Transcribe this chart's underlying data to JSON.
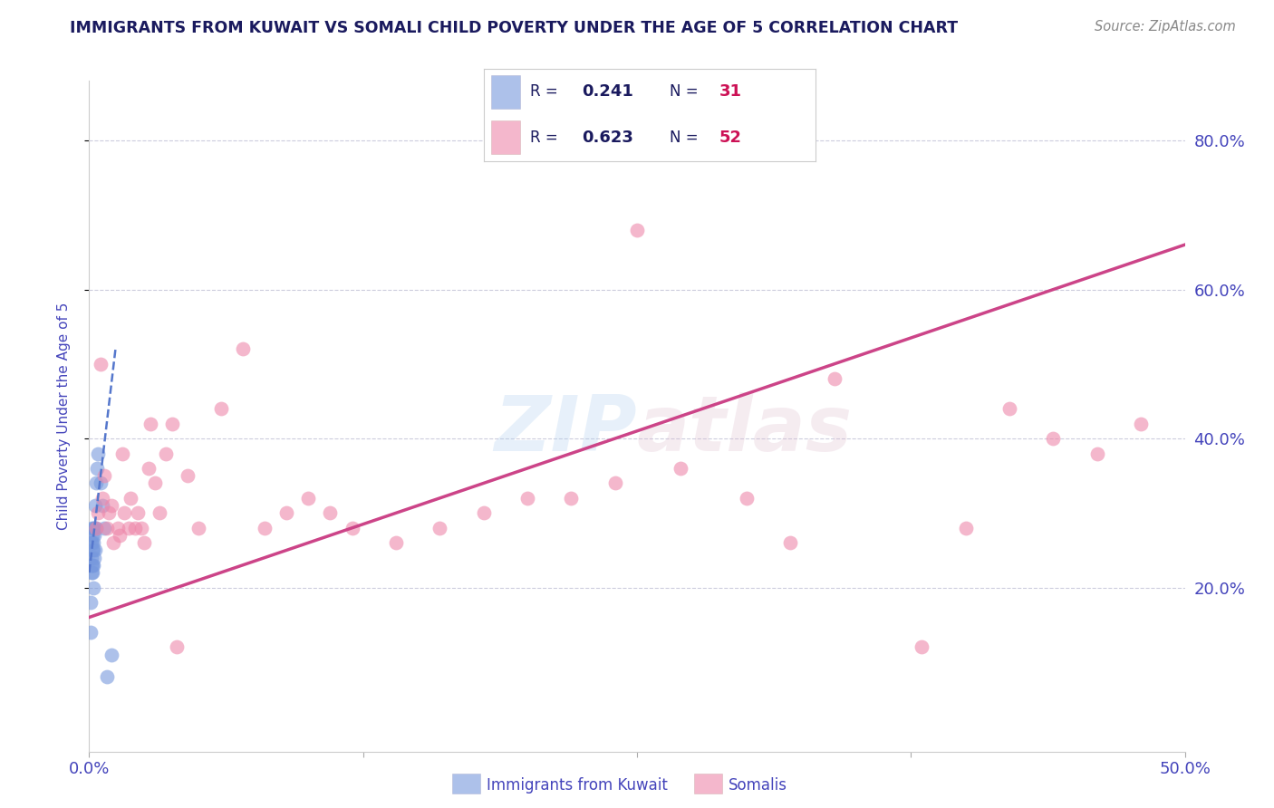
{
  "title": "IMMIGRANTS FROM KUWAIT VS SOMALI CHILD POVERTY UNDER THE AGE OF 5 CORRELATION CHART",
  "source": "Source: ZipAtlas.com",
  "ylabel": "Child Poverty Under the Age of 5",
  "xlabel_blue": "Immigrants from Kuwait",
  "xlabel_pink": "Somalis",
  "xlim": [
    0,
    0.5
  ],
  "ylim": [
    -0.02,
    0.88
  ],
  "R_blue": "0.241",
  "N_blue": "31",
  "R_pink": "0.623",
  "N_pink": "52",
  "blue_scatter_x": [
    0.0008,
    0.0008,
    0.001,
    0.001,
    0.001,
    0.0012,
    0.0012,
    0.0012,
    0.0014,
    0.0014,
    0.0016,
    0.0016,
    0.0018,
    0.002,
    0.002,
    0.002,
    0.002,
    0.0022,
    0.0022,
    0.0024,
    0.0026,
    0.0028,
    0.003,
    0.003,
    0.0035,
    0.004,
    0.005,
    0.006,
    0.007,
    0.008,
    0.01
  ],
  "blue_scatter_y": [
    0.18,
    0.14,
    0.26,
    0.24,
    0.22,
    0.28,
    0.26,
    0.23,
    0.25,
    0.22,
    0.27,
    0.23,
    0.25,
    0.28,
    0.26,
    0.23,
    0.2,
    0.27,
    0.24,
    0.28,
    0.25,
    0.31,
    0.34,
    0.28,
    0.36,
    0.38,
    0.34,
    0.31,
    0.28,
    0.08,
    0.11
  ],
  "pink_scatter_x": [
    0.003,
    0.004,
    0.005,
    0.006,
    0.007,
    0.008,
    0.009,
    0.01,
    0.011,
    0.013,
    0.014,
    0.015,
    0.016,
    0.018,
    0.019,
    0.021,
    0.022,
    0.024,
    0.025,
    0.027,
    0.028,
    0.03,
    0.032,
    0.035,
    0.038,
    0.04,
    0.045,
    0.05,
    0.06,
    0.07,
    0.08,
    0.09,
    0.1,
    0.11,
    0.12,
    0.14,
    0.16,
    0.18,
    0.2,
    0.22,
    0.24,
    0.25,
    0.27,
    0.3,
    0.32,
    0.34,
    0.38,
    0.4,
    0.42,
    0.44,
    0.46,
    0.48
  ],
  "pink_scatter_y": [
    0.28,
    0.3,
    0.5,
    0.32,
    0.35,
    0.28,
    0.3,
    0.31,
    0.26,
    0.28,
    0.27,
    0.38,
    0.3,
    0.28,
    0.32,
    0.28,
    0.3,
    0.28,
    0.26,
    0.36,
    0.42,
    0.34,
    0.3,
    0.38,
    0.42,
    0.12,
    0.35,
    0.28,
    0.44,
    0.52,
    0.28,
    0.3,
    0.32,
    0.3,
    0.28,
    0.26,
    0.28,
    0.3,
    0.32,
    0.32,
    0.34,
    0.68,
    0.36,
    0.32,
    0.26,
    0.48,
    0.12,
    0.28,
    0.44,
    0.4,
    0.38,
    0.42
  ],
  "blue_line_x": [
    0.0,
    0.012
  ],
  "blue_line_y": [
    0.22,
    0.52
  ],
  "pink_line_x": [
    0.0,
    0.5
  ],
  "pink_line_y": [
    0.16,
    0.66
  ],
  "watermark_zip": "ZIP",
  "watermark_atlas": "atlas",
  "title_color": "#1a1a5e",
  "axis_label_color": "#4444bb",
  "tick_color": "#4444bb",
  "legend_R_color": "#1a1a5e",
  "legend_N_color": "#cc1155",
  "blue_color": "#7799dd",
  "pink_color": "#ee88aa",
  "blue_line_color": "#5577cc",
  "pink_line_color": "#cc4488",
  "grid_color": "#ccccdd",
  "background_color": "#ffffff",
  "legend_border_color": "#cccccc"
}
